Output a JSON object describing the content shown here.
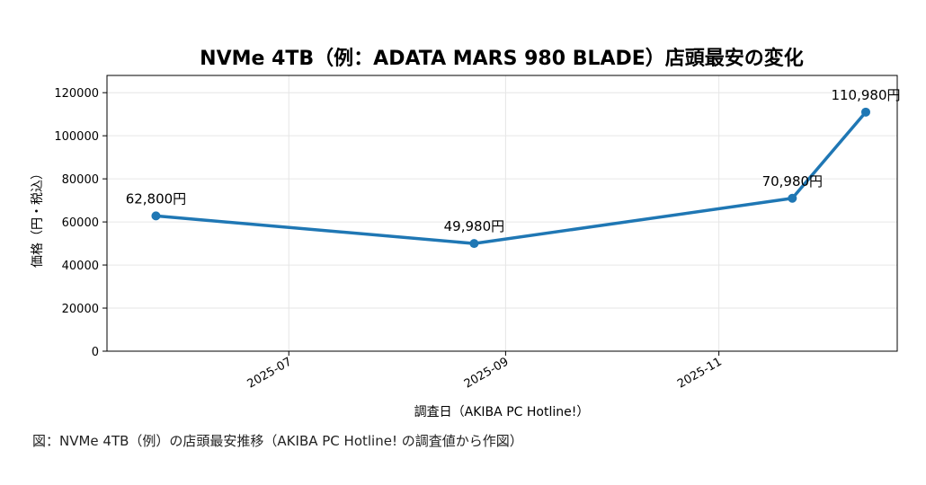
{
  "chart_data": {
    "type": "line",
    "title": "NVMe 4TB（例：ADATA MARS 980 BLADE）店頭最安の変化",
    "xlabel": "調査日（AKIBA PC Hotline!）",
    "ylabel": "価格（円・税込）",
    "x": [
      "2025-05-24",
      "2025-08-23",
      "2025-11-22",
      "2025-12-13"
    ],
    "series": [
      {
        "values": [
          62800,
          49980,
          70980,
          110980
        ]
      }
    ],
    "data_labels": [
      "62,800円",
      "49,980円",
      "70,980円",
      "110,980円"
    ],
    "xticks": [
      "2025-07",
      "2025-09",
      "2025-11"
    ],
    "yticks": [
      "0",
      "20000",
      "40000",
      "60000",
      "80000",
      "100000",
      "120000"
    ],
    "ylim": [
      0,
      128000
    ],
    "xlim": [
      "2025-05-10",
      "2025-12-22"
    ],
    "grid": true,
    "colors": {
      "line": "#1f77b4",
      "grid": "#e6e6e6",
      "axis": "#000000"
    }
  },
  "caption": "図：NVMe 4TB（例）の店頭最安推移（AKIBA PC Hotline! の調査値から作図）"
}
